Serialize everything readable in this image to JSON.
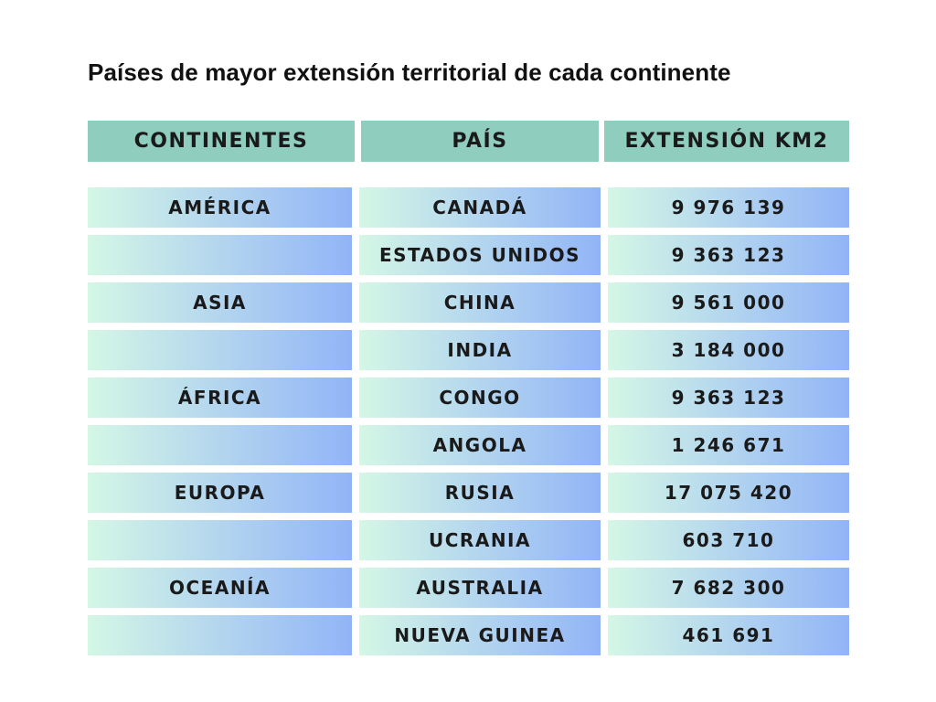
{
  "title": "Países de mayor extensión territorial de cada continente",
  "colors": {
    "header_bg": "#8fcdbf",
    "row_gradient_start": "#d4f7e6",
    "row_gradient_end": "#92b4f7",
    "text": "#1a1a1a"
  },
  "table": {
    "headers": [
      "CONTINENTES",
      "PAÍS",
      "EXTENSIÓN KM2"
    ],
    "rows": [
      {
        "continente": "AMÉRICA",
        "pais": "CANADÁ",
        "extension": "9 976 139"
      },
      {
        "continente": "",
        "pais": "ESTADOS UNIDOS",
        "extension": "9 363 123"
      },
      {
        "continente": "ASIA",
        "pais": "CHINA",
        "extension": "9 561 000"
      },
      {
        "continente": "",
        "pais": "INDIA",
        "extension": "3 184 000"
      },
      {
        "continente": "ÁFRICA",
        "pais": "CONGO",
        "extension": "9 363 123"
      },
      {
        "continente": "",
        "pais": "ANGOLA",
        "extension": "1 246 671"
      },
      {
        "continente": "EUROPA",
        "pais": "RUSIA",
        "extension": "17 075 420"
      },
      {
        "continente": "",
        "pais": "UCRANIA",
        "extension": "603 710"
      },
      {
        "continente": "OCEANÍA",
        "pais": "AUSTRALIA",
        "extension": "7 682 300"
      },
      {
        "continente": "",
        "pais": "NUEVA GUINEA",
        "extension": "461 691"
      }
    ]
  }
}
